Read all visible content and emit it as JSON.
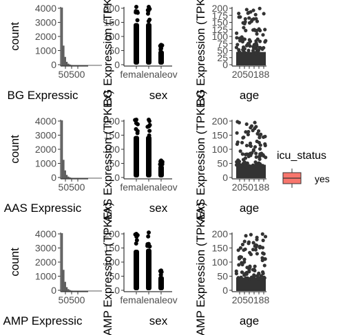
{
  "chart_data": [
    {
      "panel": "hist-BG",
      "type": "histogram",
      "xlabel": "BG Expressic",
      "ylabel": "count",
      "y_ticks": [
        "0",
        "1000",
        "2000",
        "3000",
        "4000"
      ],
      "x_tick_text": "50500",
      "bins": [
        4100,
        1400,
        600,
        250,
        120,
        60,
        30,
        15,
        8,
        4,
        2,
        1
      ]
    },
    {
      "panel": "sex-BG",
      "type": "strip",
      "xlabel": "sex",
      "ylabel": "BG Expression (TPKEx)",
      "y_ticks": [
        "0",
        "50",
        "100",
        "150",
        "200"
      ],
      "x_tick_text": "femalenaleov",
      "categories": [
        "female",
        "male",
        "unknown"
      ],
      "max_values": [
        205,
        205,
        70
      ]
    },
    {
      "panel": "age-BG",
      "type": "strip",
      "xlabel": "age",
      "ylabel": "BG Expression (TPKEx)",
      "y_ticks": [
        "0",
        "25",
        "50",
        "75",
        "100",
        "125",
        "150",
        "175",
        "200"
      ],
      "x_tick_text": "2050188",
      "max_value": 200
    },
    {
      "panel": "hist-AAS",
      "type": "histogram",
      "xlabel": "AAS Expressic",
      "ylabel": "count",
      "y_ticks": [
        "0",
        "1000",
        "2000",
        "3000",
        "4000"
      ],
      "x_tick_text": "50500",
      "bins": [
        4100,
        1300,
        550,
        230,
        110,
        55,
        28,
        14,
        7,
        3,
        2,
        1
      ]
    },
    {
      "panel": "sex-AAS",
      "type": "strip",
      "xlabel": "sex",
      "ylabel": "AAS Expression (TPKEx)",
      "y_ticks": [
        "0",
        "50",
        "100",
        "150",
        "200"
      ],
      "x_tick_text": "femalenaleov",
      "categories": [
        "female",
        "male",
        "unknown"
      ],
      "max_values": [
        205,
        205,
        60
      ]
    },
    {
      "panel": "age-AAS",
      "type": "strip",
      "xlabel": "age",
      "ylabel": "AAS Expression (TPKEx)",
      "y_ticks": [
        "0",
        "50",
        "100",
        "150",
        "200"
      ],
      "x_tick_text": "2050188",
      "max_value": 200
    },
    {
      "panel": "hist-AMP",
      "type": "histogram",
      "xlabel": "AMP Expressic",
      "ylabel": "count",
      "y_ticks": [
        "0",
        "1000",
        "2000",
        "3000",
        "4000"
      ],
      "x_tick_text": "50500",
      "bins": [
        4100,
        1500,
        650,
        270,
        130,
        65,
        32,
        16,
        8,
        4,
        2,
        1
      ]
    },
    {
      "panel": "sex-AMP",
      "type": "strip",
      "xlabel": "sex",
      "ylabel": "AMP Expression (TPKEx)",
      "y_ticks": [
        "0",
        "50",
        "100",
        "150",
        "200"
      ],
      "x_tick_text": "femalenaleov",
      "categories": [
        "female",
        "male",
        "unknown"
      ],
      "max_values": [
        200,
        205,
        70
      ]
    },
    {
      "panel": "age-AMP",
      "type": "strip",
      "xlabel": "age",
      "ylabel": "AMP Expression (TPKEx)",
      "y_ticks": [
        "0",
        "50",
        "100",
        "150",
        "200"
      ],
      "x_tick_text": "2050188",
      "max_value": 200
    }
  ],
  "legend": {
    "title": "icu_status",
    "items": [
      {
        "label": "yes",
        "fill": "#F8766D",
        "stroke": "#333333"
      }
    ]
  },
  "colors": {
    "points": "#000000",
    "hist": "#595959",
    "axis": "#333333"
  }
}
